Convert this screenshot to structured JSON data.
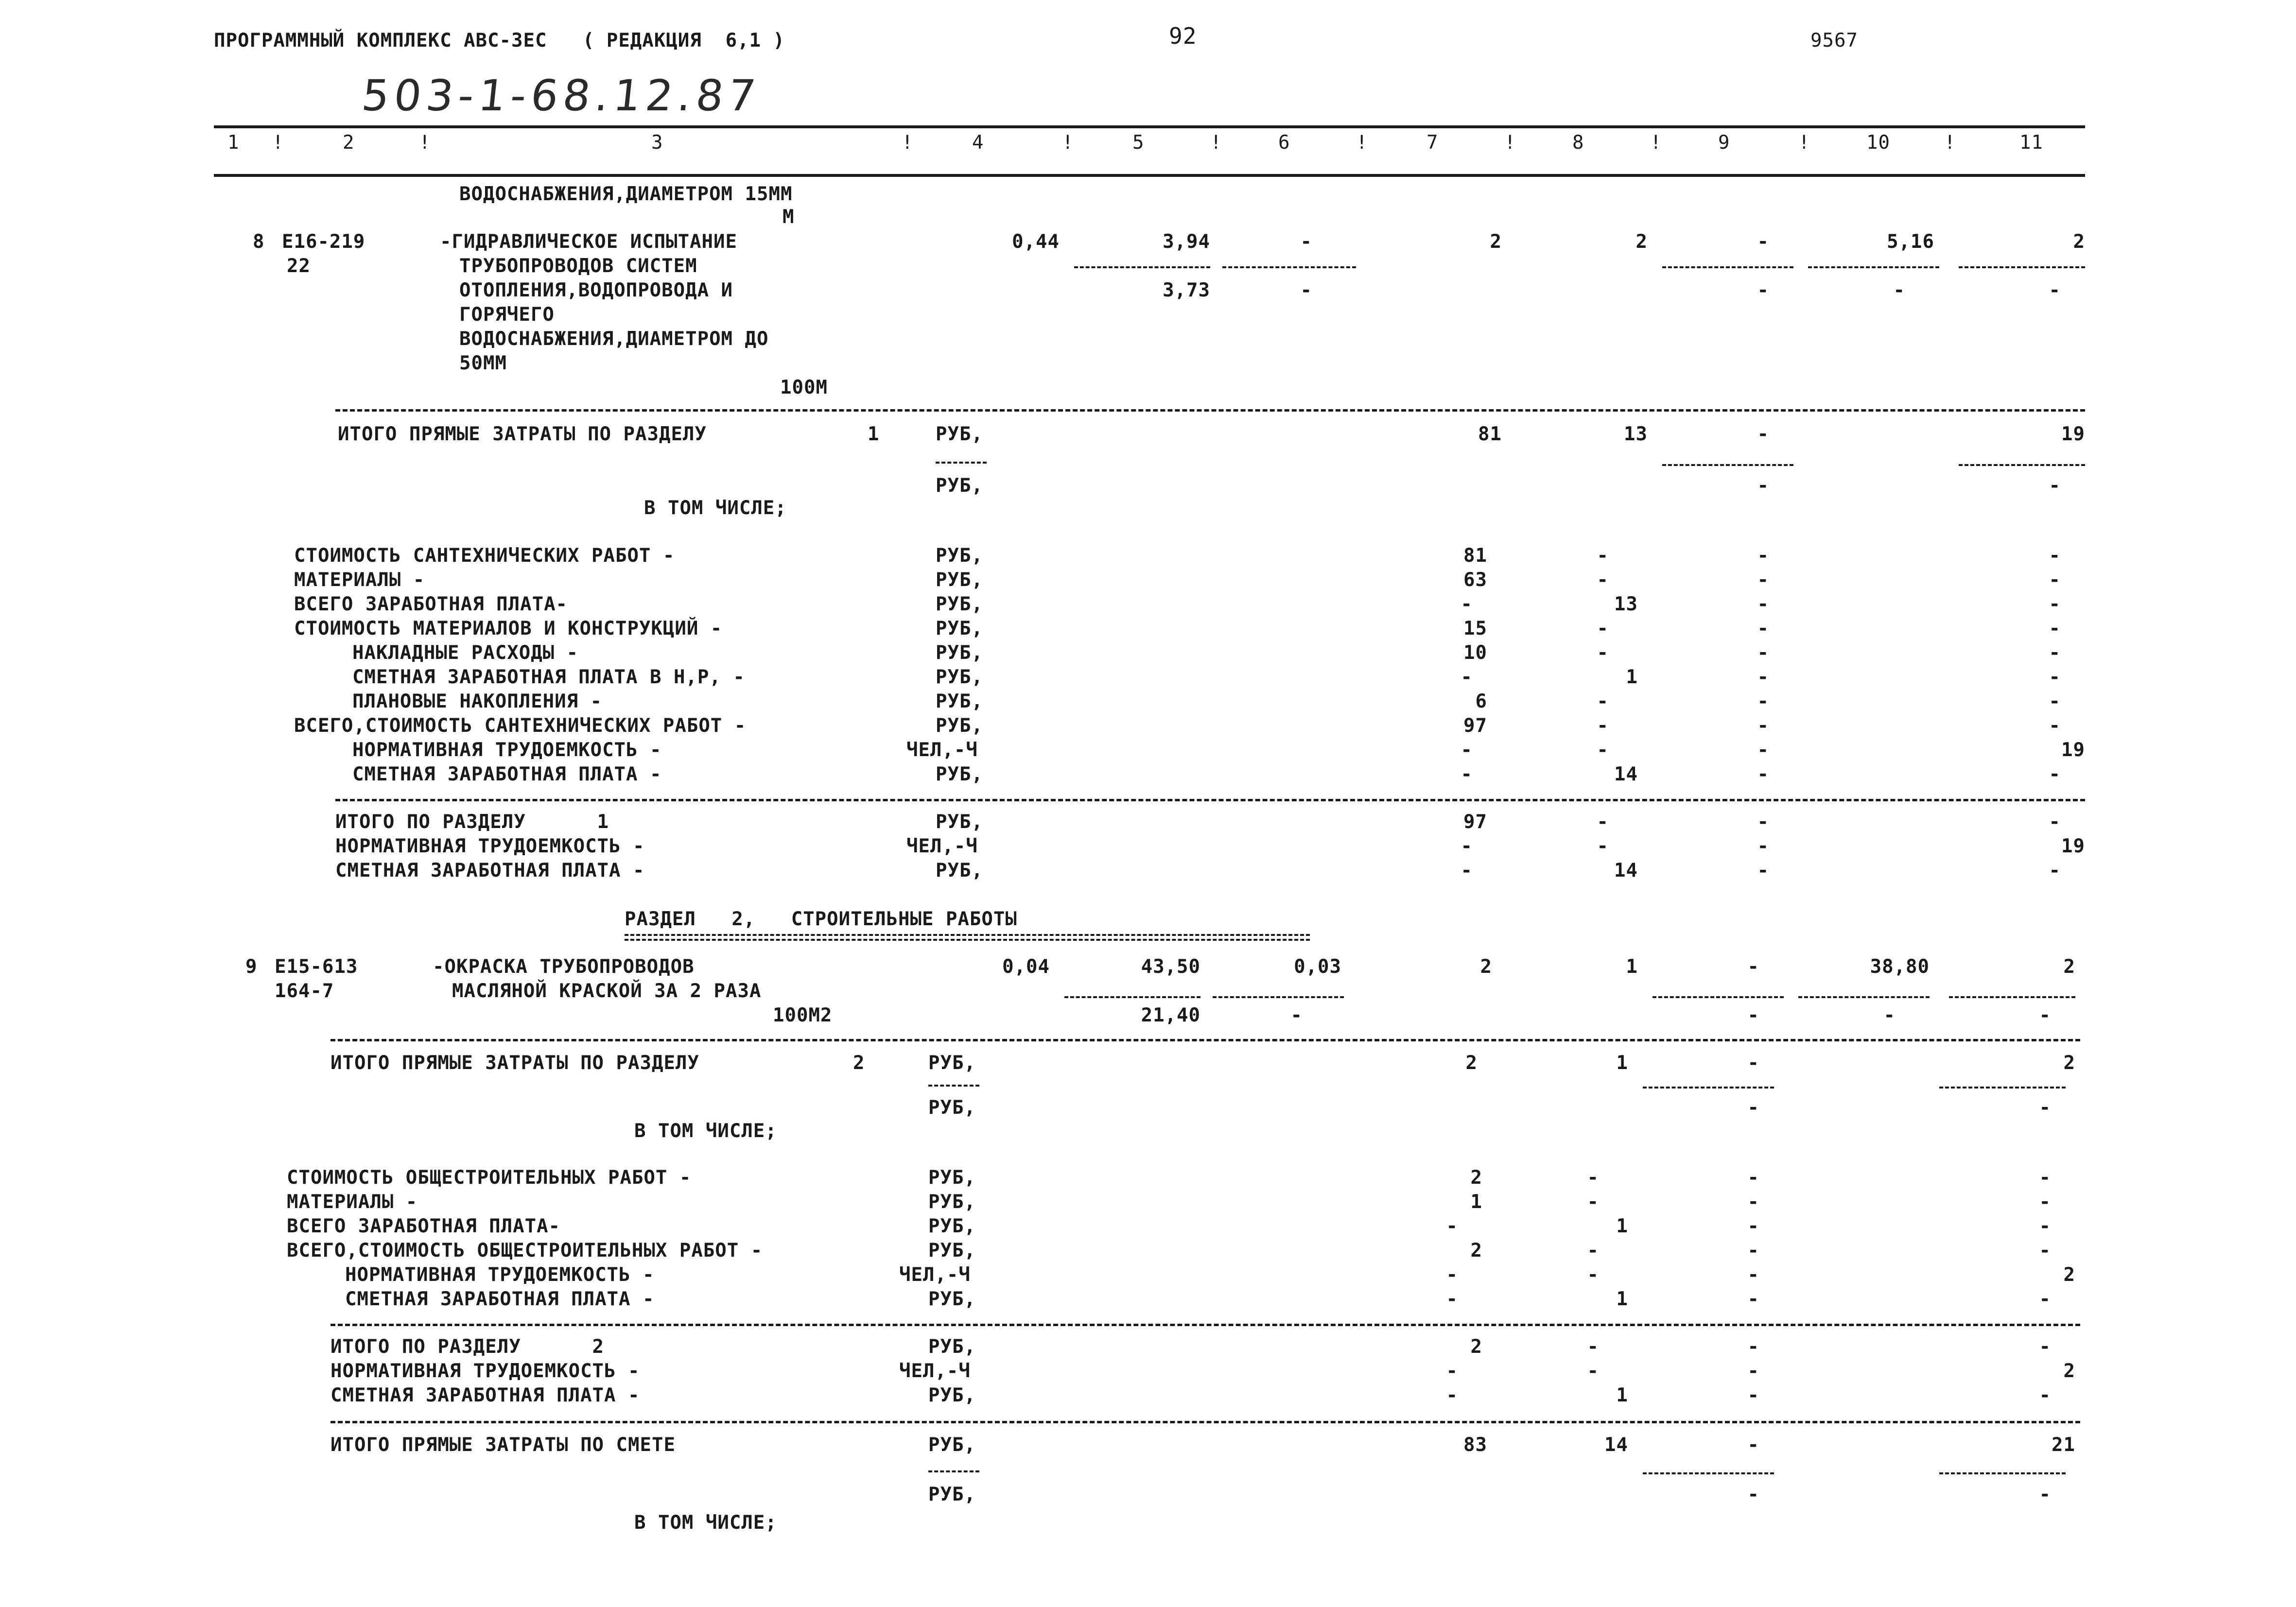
{
  "header": {
    "program": "ПРОГРАММНЫЙ КОМПЛЕКС АВС-3ЕС   ( РЕДАКЦИЯ  6,1 )",
    "page_number": "92",
    "doc_code": "9567",
    "handwritten_ref": "503-1-68.12.87"
  },
  "columns": [
    "1",
    "2",
    "3",
    "4",
    "5",
    "6",
    "7",
    "8",
    "9",
    "10",
    "11"
  ],
  "row8": {
    "prev_desc_1": "ВОДОСНАБЖЕНИЯ,ДИАМЕТРОМ 15ММ",
    "prev_unit": "М",
    "num": "8",
    "code1": "Е16-219",
    "code2": "22",
    "desc_1": "-ГИДРАВЛИЧЕСКОЕ ИСПЫТАНИЕ",
    "desc_2": "ТРУБОПРОВОДОВ СИСТЕМ",
    "desc_3": "ОТОПЛЕНИЯ,ВОДОПРОВОДА И",
    "desc_4": "ГОРЯЧЕГО",
    "desc_5": "ВОДОСНАБЖЕНИЯ,ДИАМЕТРОМ ДО",
    "desc_6": "50ММ",
    "unit": "100М",
    "c4": "0,44",
    "c5": "3,94",
    "c5b": "3,73",
    "c6": "-",
    "c6b": "-",
    "c7": "2",
    "c8": "2",
    "c9": "-",
    "c9b": "-",
    "c10": "5,16",
    "c10b": "-",
    "c11": "2",
    "c11b": "-"
  },
  "sec1": {
    "direct_label": "ИТОГО ПРЯМЫЕ ЗАТРАТЫ ПО РАЗДЕЛУ",
    "direct_num": "1",
    "rub": "РУБ,",
    "direct_c7": "81",
    "direct_c8": "13",
    "direct_c9": "-",
    "direct_c11": "19",
    "direct2_c9": "-",
    "direct2_c11": "-",
    "incl": "В ТОМ ЧИСЛЕ;",
    "items": [
      {
        "label": "СТОИМОСТЬ САНТЕХНИЧЕСКИХ РАБОТ -",
        "unit": "РУБ,",
        "c7": "81",
        "c8": "-",
        "c9": "-",
        "c11": "-"
      },
      {
        "label": "МАТЕРИАЛЫ -",
        "unit": "РУБ,",
        "c7": "63",
        "c8": "-",
        "c9": "-",
        "c11": "-"
      },
      {
        "label": "ВСЕГО ЗАРАБОТНАЯ ПЛАТА-",
        "unit": "РУБ,",
        "c7": "-",
        "c8": "13",
        "c9": "-",
        "c11": "-"
      },
      {
        "label": "СТОИМОСТЬ МАТЕРИАЛОВ И КОНСТРУКЦИЙ -",
        "unit": "РУБ,",
        "c7": "15",
        "c8": "-",
        "c9": "-",
        "c11": "-"
      },
      {
        "label": "НАКЛАДНЫЕ РАСХОДЫ -",
        "unit": "РУБ,",
        "c7": "10",
        "c8": "-",
        "c9": "-",
        "c11": "-"
      },
      {
        "label": "СМЕТНАЯ ЗАРАБОТНАЯ ПЛАТА В Н,Р, -",
        "unit": "РУБ,",
        "c7": "-",
        "c8": "1",
        "c9": "-",
        "c11": "-"
      },
      {
        "label": "ПЛАНОВЫЕ НАКОПЛЕНИЯ -",
        "unit": "РУБ,",
        "c7": "6",
        "c8": "-",
        "c9": "-",
        "c11": "-"
      },
      {
        "label": "ВСЕГО,СТОИМОСТЬ САНТЕХНИЧЕСКИХ РАБОТ -",
        "unit": "РУБ,",
        "c7": "97",
        "c8": "-",
        "c9": "-",
        "c11": "-"
      },
      {
        "label": "НОРМАТИВНАЯ ТРУДОЕМКОСТЬ -",
        "unit": "ЧЕЛ,-Ч",
        "c7": "-",
        "c8": "-",
        "c9": "-",
        "c11": "19"
      },
      {
        "label": "СМЕТНАЯ ЗАРАБОТНАЯ ПЛАТА -",
        "unit": "РУБ,",
        "c7": "-",
        "c8": "14",
        "c9": "-",
        "c11": "-"
      }
    ],
    "totals": [
      {
        "label": "ИТОГО ПО РАЗДЕЛУ      1",
        "unit": "РУБ,",
        "c7": "97",
        "c8": "-",
        "c9": "-",
        "c11": "-"
      },
      {
        "label": "НОРМАТИВНАЯ ТРУДОЕМКОСТЬ -",
        "unit": "ЧЕЛ,-Ч",
        "c7": "-",
        "c8": "-",
        "c9": "-",
        "c11": "19"
      },
      {
        "label": "СМЕТНАЯ ЗАРАБОТНАЯ ПЛАТА -",
        "unit": "РУБ,",
        "c7": "-",
        "c8": "14",
        "c9": "-",
        "c11": "-"
      }
    ]
  },
  "sec2": {
    "title": "РАЗДЕЛ   2,   СТРОИТЕЛЬНЫЕ РАБОТЫ",
    "row9": {
      "num": "9",
      "code1": "Е15-613",
      "code2": "164-7",
      "desc_1": "-ОКРАСКА ТРУБОПРОВОДОВ",
      "desc_2": "МАСЛЯНОЙ КРАСКОЙ ЗА 2 РАЗА",
      "unit": "100М2",
      "c4": "0,04",
      "c5": "43,50",
      "c5b": "21,40",
      "c6": "0,03",
      "c6b": "-",
      "c7": "2",
      "c8": "1",
      "c9": "-",
      "c9b": "-",
      "c10": "38,80",
      "c10b": "-",
      "c11": "2",
      "c11b": "-"
    },
    "direct_label": "ИТОГО ПРЯМЫЕ ЗАТРАТЫ ПО РАЗДЕЛУ",
    "direct_num": "2",
    "rub": "РУБ,",
    "direct_c7": "2",
    "direct_c8": "1",
    "direct_c9": "-",
    "direct_c11": "2",
    "direct2_c9": "-",
    "direct2_c11": "-",
    "incl": "В ТОМ ЧИСЛЕ;",
    "items": [
      {
        "label": "СТОИМОСТЬ ОБЩЕСТРОИТЕЛЬНЫХ РАБОТ -",
        "unit": "РУБ,",
        "c7": "2",
        "c8": "-",
        "c9": "-",
        "c11": "-"
      },
      {
        "label": "МАТЕРИАЛЫ -",
        "unit": "РУБ,",
        "c7": "1",
        "c8": "-",
        "c9": "-",
        "c11": "-"
      },
      {
        "label": "ВСЕГО ЗАРАБОТНАЯ ПЛАТА-",
        "unit": "РУБ,",
        "c7": "-",
        "c8": "1",
        "c9": "-",
        "c11": "-"
      },
      {
        "label": "ВСЕГО,СТОИМОСТЬ ОБЩЕСТРОИТЕЛЬНЫХ РАБОТ -",
        "unit": "РУБ,",
        "c7": "2",
        "c8": "-",
        "c9": "-",
        "c11": "-"
      },
      {
        "label": "НОРМАТИВНАЯ ТРУДОЕМКОСТЬ -",
        "unit": "ЧЕЛ,-Ч",
        "c7": "-",
        "c8": "-",
        "c9": "-",
        "c11": "2"
      },
      {
        "label": "СМЕТНАЯ ЗАРАБОТНАЯ ПЛАТА -",
        "unit": "РУБ,",
        "c7": "-",
        "c8": "1",
        "c9": "-",
        "c11": "-"
      }
    ],
    "totals": [
      {
        "label": "ИТОГО ПО РАЗДЕЛУ      2",
        "unit": "РУБ,",
        "c7": "2",
        "c8": "-",
        "c9": "-",
        "c11": "-"
      },
      {
        "label": "НОРМАТИВНАЯ ТРУДОЕМКОСТЬ -",
        "unit": "ЧЕЛ,-Ч",
        "c7": "-",
        "c8": "-",
        "c9": "-",
        "c11": "2"
      },
      {
        "label": "СМЕТНАЯ ЗАРАБОТНАЯ ПЛАТА -",
        "unit": "РУБ,",
        "c7": "-",
        "c8": "1",
        "c9": "-",
        "c11": "-"
      }
    ]
  },
  "grand": {
    "label": "ИТОГО ПРЯМЫЕ ЗАТРАТЫ ПО СМЕТЕ",
    "unit": "РУБ,",
    "c7": "83",
    "c8": "14",
    "c9": "-",
    "c11": "21",
    "unit2": "РУБ,",
    "c9b": "-",
    "c11b": "-",
    "incl": "В ТОМ ЧИСЛЕ;"
  }
}
